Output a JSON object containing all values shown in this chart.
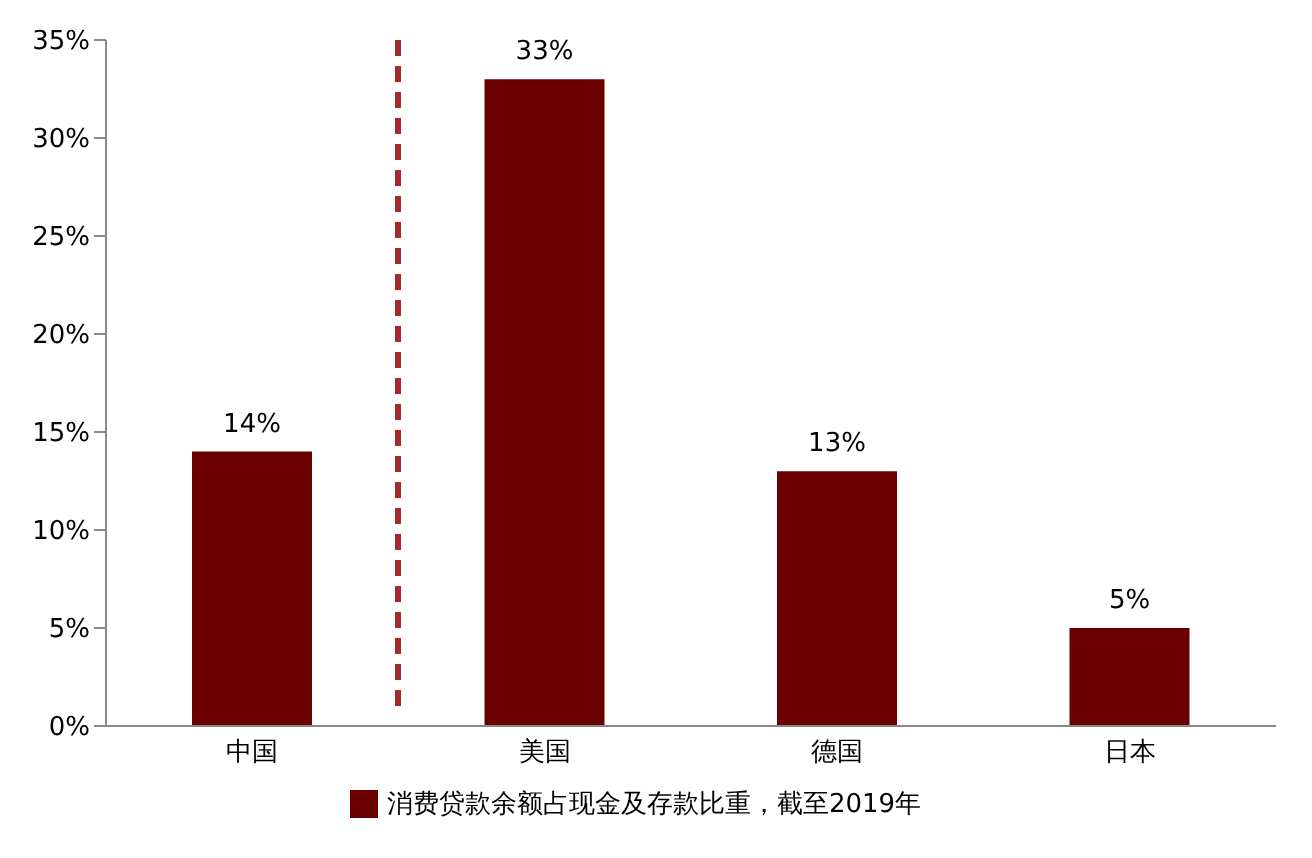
{
  "chart_data": {
    "type": "bar",
    "categories": [
      "中国",
      "美国",
      "德国",
      "日本"
    ],
    "series": [
      {
        "name": "消费贷款余额占现金及存款比重，截至2019年",
        "color": "#6b0000",
        "values": [
          14,
          33,
          13,
          5
        ],
        "value_labels": [
          "14%",
          "33%",
          "13%",
          "5%"
        ]
      }
    ],
    "ylim": [
      0,
      35
    ],
    "yticks": [
      {
        "value": 0,
        "label": "0%"
      },
      {
        "value": 5,
        "label": "5%"
      },
      {
        "value": 10,
        "label": "10%"
      },
      {
        "value": 15,
        "label": "15%"
      },
      {
        "value": 20,
        "label": "20%"
      },
      {
        "value": 25,
        "label": "25%"
      },
      {
        "value": 30,
        "label": "30%"
      },
      {
        "value": 35,
        "label": "35%"
      }
    ],
    "grid": false,
    "legend": "bottom"
  }
}
